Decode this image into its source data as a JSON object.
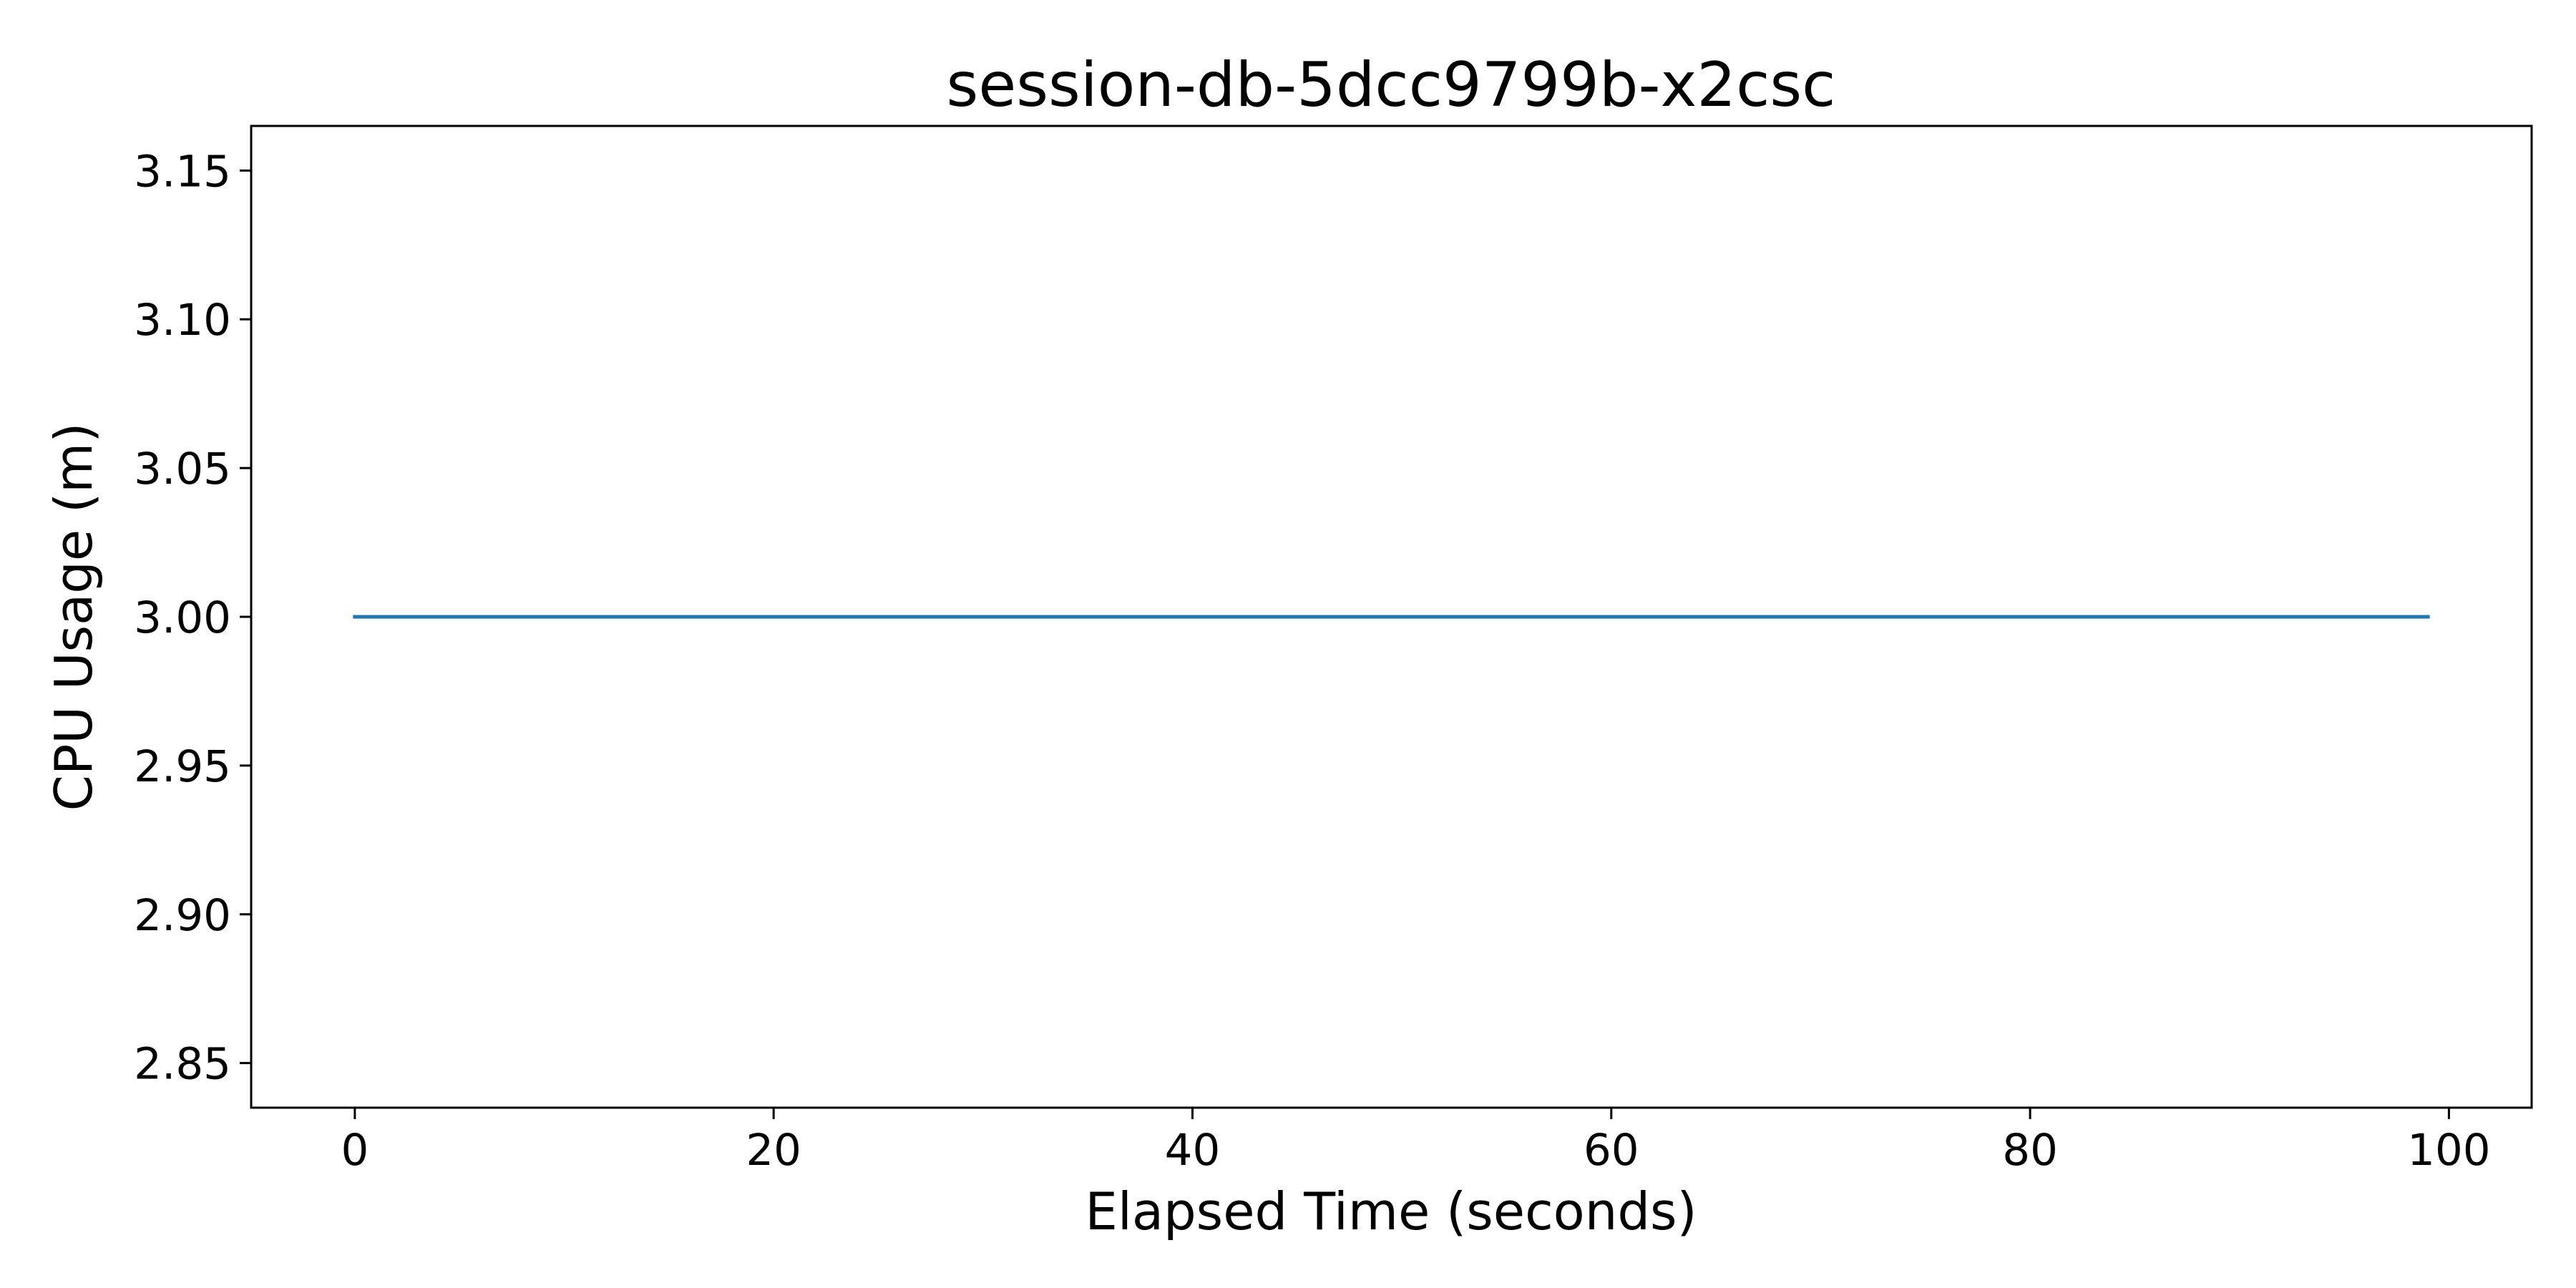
{
  "chart_data": {
    "type": "line",
    "title": "session-db-5dcc9799b-x2csc",
    "xlabel": "Elapsed Time (seconds)",
    "ylabel": "CPU Usage (m)",
    "xlim": [
      -4.95,
      103.95
    ],
    "ylim": [
      2.835,
      3.165
    ],
    "xticks": [
      0,
      20,
      40,
      60,
      80,
      100
    ],
    "xtick_labels": [
      "0",
      "20",
      "40",
      "60",
      "80",
      "100"
    ],
    "yticks": [
      2.85,
      2.9,
      2.95,
      3.0,
      3.05,
      3.1,
      3.15
    ],
    "ytick_labels": [
      "2.85",
      "2.90",
      "2.95",
      "3.00",
      "3.05",
      "3.10",
      "3.15"
    ],
    "grid": false,
    "series": [
      {
        "name": "CPU Usage",
        "color": "#1f77b4",
        "x": [
          0,
          99
        ],
        "y": [
          3.0,
          3.0
        ]
      }
    ]
  }
}
